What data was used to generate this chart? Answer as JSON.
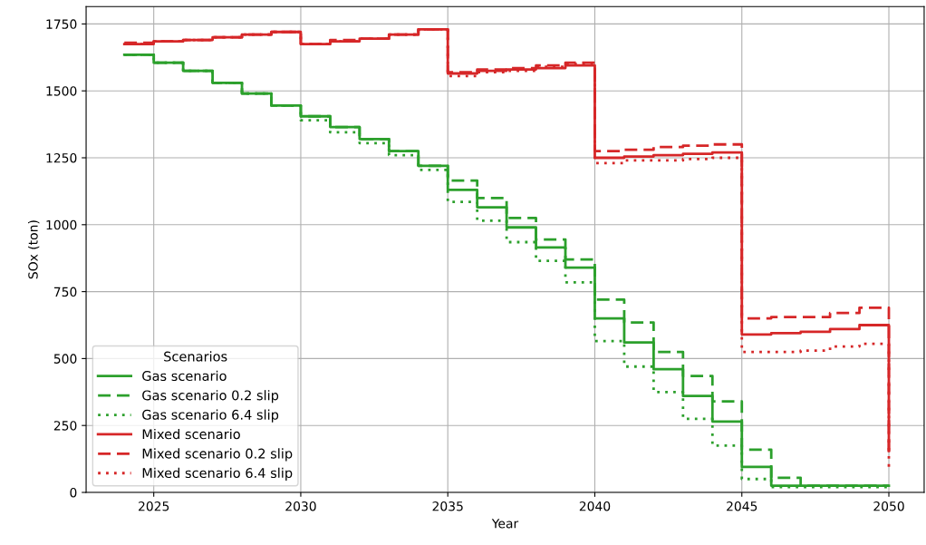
{
  "chart_data": {
    "type": "step",
    "xlabel": "Year",
    "ylabel": "SOx (ton)",
    "legend_title": "Scenarios",
    "legend": "bottom left",
    "grid": true,
    "marker": "none",
    "x": [
      2024,
      2025,
      2026,
      2027,
      2028,
      2029,
      2030,
      2031,
      2032,
      2033,
      2034,
      2035,
      2036,
      2037,
      2038,
      2039,
      2040,
      2041,
      2042,
      2043,
      2044,
      2045,
      2046,
      2047,
      2048,
      2049,
      2050
    ],
    "xlim": [
      2022.7,
      2051.2
    ],
    "xticks": [
      2025,
      2030,
      2035,
      2040,
      2045,
      2050
    ],
    "ylim": [
      0,
      1815
    ],
    "yticks": [
      0,
      250,
      500,
      750,
      1000,
      1250,
      1500,
      1750
    ],
    "series": [
      {
        "name": "Gas scenario",
        "color": "#2ca02c",
        "line_style": "solid",
        "values": [
          1635,
          1605,
          1575,
          1530,
          1490,
          1445,
          1405,
          1365,
          1320,
          1275,
          1220,
          1130,
          1065,
          990,
          915,
          840,
          650,
          560,
          460,
          360,
          265,
          95,
          25,
          25,
          25,
          25,
          25
        ]
      },
      {
        "name": "Gas scenario 0.2 slip",
        "color": "#2ca02c",
        "line_style": "dashed",
        "values": [
          1635,
          1605,
          1575,
          1530,
          1490,
          1445,
          1405,
          1365,
          1320,
          1275,
          1220,
          1165,
          1100,
          1025,
          945,
          870,
          720,
          635,
          525,
          435,
          340,
          160,
          55,
          25,
          25,
          25,
          25
        ]
      },
      {
        "name": "Gas scenario 6.4 slip",
        "color": "#2ca02c",
        "line_style": "dotted",
        "values": [
          1635,
          1605,
          1575,
          1530,
          1490,
          1445,
          1390,
          1345,
          1305,
          1260,
          1205,
          1085,
          1015,
          935,
          865,
          785,
          565,
          470,
          375,
          275,
          175,
          50,
          20,
          20,
          20,
          20,
          20
        ]
      },
      {
        "name": "Mixed scenario",
        "color": "#d62728",
        "line_style": "solid",
        "values": [
          1675,
          1685,
          1690,
          1700,
          1710,
          1720,
          1675,
          1685,
          1695,
          1710,
          1730,
          1565,
          1575,
          1580,
          1585,
          1595,
          1250,
          1255,
          1260,
          1265,
          1270,
          590,
          595,
          600,
          610,
          625,
          155
        ]
      },
      {
        "name": "Mixed scenario 0.2 slip",
        "color": "#d62728",
        "line_style": "dashed",
        "values": [
          1680,
          1685,
          1690,
          1700,
          1710,
          1720,
          1675,
          1690,
          1695,
          1710,
          1730,
          1570,
          1580,
          1585,
          1595,
          1605,
          1275,
          1280,
          1290,
          1295,
          1300,
          650,
          655,
          655,
          670,
          690,
          140
        ]
      },
      {
        "name": "Mixed scenario 6.4 slip",
        "color": "#d62728",
        "line_style": "dotted",
        "values": [
          1675,
          1685,
          1690,
          1700,
          1710,
          1720,
          1675,
          1685,
          1695,
          1710,
          1730,
          1555,
          1570,
          1575,
          1590,
          1600,
          1230,
          1240,
          1240,
          1245,
          1250,
          525,
          525,
          530,
          545,
          555,
          85
        ]
      }
    ]
  }
}
